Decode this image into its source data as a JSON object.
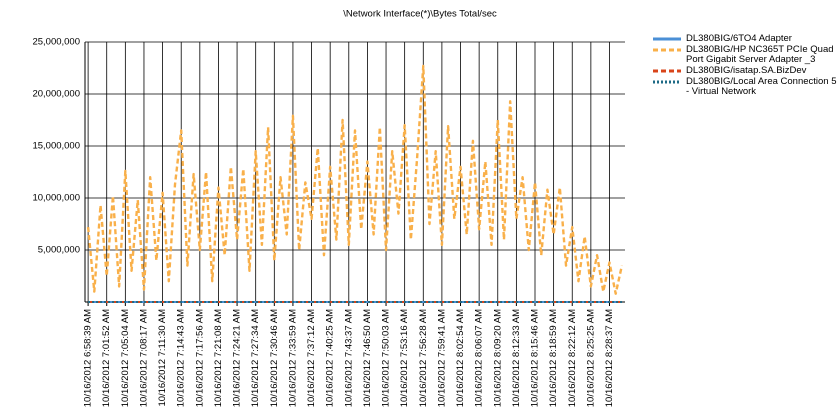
{
  "chart_data": {
    "type": "line",
    "title": "\\Network Interface(*)\\Bytes Total/sec",
    "categories": [
      "10/16/2012 6:58:39 AM",
      null,
      null,
      "10/16/2012 7:01:52 AM",
      null,
      null,
      "10/16/2012 7:05:04 AM",
      null,
      null,
      "10/16/2012 7:08:17 AM",
      null,
      null,
      "10/16/2012 7:11:30 AM",
      null,
      null,
      "10/16/2012 7:14:43 AM",
      null,
      null,
      "10/16/2012 7:17:56 AM",
      null,
      null,
      "10/16/2012 7:21:08 AM",
      null,
      null,
      "10/16/2012 7:24:21 AM",
      null,
      null,
      "10/16/2012 7:27:34 AM",
      null,
      null,
      "10/16/2012 7:30:46 AM",
      null,
      null,
      "10/16/2012 7:33:59 AM",
      null,
      null,
      "10/16/2012 7:37:12 AM",
      null,
      null,
      "10/16/2012 7:40:25 AM",
      null,
      null,
      "10/16/2012 7:43:37 AM",
      null,
      null,
      "10/16/2012 7:46:50 AM",
      null,
      null,
      "10/16/2012 7:50:03 AM",
      null,
      null,
      "10/16/2012 7:53:16 AM",
      null,
      null,
      "10/16/2012 7:56:28 AM",
      null,
      null,
      "10/16/2012 7:59:41 AM",
      null,
      null,
      "10/16/2012 8:02:54 AM",
      null,
      null,
      "10/16/2012 8:06:07 AM",
      null,
      null,
      "10/16/2012 8:09:20 AM",
      null,
      null,
      "10/16/2012 8:12:33 AM",
      null,
      null,
      "10/16/2012 8:15:46 AM",
      null,
      null,
      "10/16/2012 8:18:59 AM",
      null,
      null,
      "10/16/2012 8:22:12 AM",
      null,
      null,
      "10/16/2012 8:25:25 AM",
      null,
      null,
      "10/16/2012 8:28:37 AM",
      null,
      null
    ],
    "series": [
      {
        "name": "DL380BIG/HP NC365T PCIe Quad Port Gigabit Server Adapter _3",
        "color": "#f9b04a",
        "dash": "dashed",
        "values": [
          7200000,
          1000000,
          9300000,
          2500000,
          10200000,
          1500000,
          12600000,
          3000000,
          9800000,
          1200000,
          12000000,
          4000000,
          10500000,
          2000000,
          11300000,
          16500000,
          3500000,
          12300000,
          5000000,
          12500000,
          2000000,
          11000000,
          4500000,
          13000000,
          6000000,
          12800000,
          3000000,
          14500000,
          5500000,
          16800000,
          4000000,
          12000000,
          6500000,
          17900000,
          5000000,
          11500000,
          8000000,
          14800000,
          4500000,
          13000000,
          6000000,
          17500000,
          5500000,
          16500000,
          7000000,
          13500000,
          6500000,
          16800000,
          5000000,
          14500000,
          8500000,
          17000000,
          6000000,
          13800000,
          22700000,
          7500000,
          14500000,
          5500000,
          16900000,
          8000000,
          13000000,
          6500000,
          15500000,
          7000000,
          13500000,
          5500000,
          17500000,
          6000000,
          19300000,
          8000000,
          12000000,
          5000000,
          11500000,
          4500000,
          10800000,
          6500000,
          11000000,
          3500000,
          7200000,
          2000000,
          6300000,
          1500000,
          4500000,
          1000000,
          3800000,
          800000,
          3500000
        ]
      },
      {
        "name": "DL380BIG/6TO4 Adapter",
        "color": "#4a8fd6",
        "dash": "solid",
        "values": [
          0,
          0,
          0,
          0,
          0,
          0,
          0,
          0,
          0,
          0,
          0,
          0,
          0,
          0,
          0,
          0,
          0,
          0,
          0,
          0,
          0,
          0,
          0,
          0,
          0,
          0,
          0,
          0,
          0,
          0,
          0,
          0,
          0,
          0,
          0,
          0,
          0,
          0,
          0,
          0,
          0,
          0,
          0,
          0,
          0,
          0,
          0,
          0,
          0,
          0,
          0,
          0,
          0,
          0,
          0,
          0,
          0,
          0,
          0,
          0,
          0,
          0,
          0,
          0,
          0,
          0,
          0,
          0,
          0,
          0,
          0,
          0,
          0,
          0,
          0,
          0,
          0,
          0,
          0,
          0,
          0,
          0,
          0,
          0,
          0,
          0,
          0
        ]
      },
      {
        "name": "DL380BIG/isatap.SA.BizDev",
        "color": "#d9441a",
        "dash": "dashed",
        "values": [
          0,
          0,
          0,
          0,
          0,
          0,
          0,
          0,
          0,
          0,
          0,
          0,
          0,
          0,
          0,
          0,
          0,
          0,
          0,
          0,
          0,
          0,
          0,
          0,
          0,
          0,
          0,
          0,
          0,
          0,
          0,
          0,
          0,
          0,
          0,
          0,
          0,
          0,
          0,
          0,
          0,
          0,
          0,
          0,
          0,
          0,
          0,
          0,
          0,
          0,
          0,
          0,
          0,
          0,
          0,
          0,
          0,
          0,
          0,
          0,
          0,
          0,
          0,
          0,
          0,
          0,
          0,
          0,
          0,
          0,
          0,
          0,
          0,
          0,
          0,
          0,
          0,
          0,
          0,
          0,
          0,
          0,
          0,
          0,
          0,
          0,
          0
        ]
      },
      {
        "name": "DL380BIG/Local Area Connection 5 - Virtual Network",
        "color": "#1d6a86",
        "dash": "dotted",
        "values": [
          0,
          0,
          0,
          0,
          0,
          0,
          0,
          0,
          0,
          0,
          0,
          0,
          0,
          0,
          0,
          0,
          0,
          0,
          0,
          0,
          0,
          0,
          0,
          0,
          0,
          0,
          0,
          0,
          0,
          0,
          0,
          0,
          0,
          0,
          0,
          0,
          0,
          0,
          0,
          0,
          0,
          0,
          0,
          0,
          0,
          0,
          0,
          0,
          0,
          0,
          0,
          0,
          0,
          0,
          0,
          0,
          0,
          0,
          0,
          0,
          0,
          0,
          0,
          0,
          0,
          0,
          0,
          0,
          0,
          0,
          0,
          0,
          0,
          0,
          0,
          0,
          0,
          0,
          0,
          0,
          0,
          0,
          0,
          0,
          0,
          0,
          0
        ]
      }
    ],
    "legend_order": [
      1,
      0,
      2,
      3
    ],
    "ylim": [
      0,
      25000000
    ],
    "yticks": [
      {
        "value": 5000000,
        "label": "5,000,000"
      },
      {
        "value": 10000000,
        "label": "10,000,000"
      },
      {
        "value": 15000000,
        "label": "15,000,000"
      },
      {
        "value": 20000000,
        "label": "20,000,000"
      },
      {
        "value": 25000000,
        "label": "25,000,000"
      }
    ],
    "grid": true,
    "legend": "right"
  }
}
